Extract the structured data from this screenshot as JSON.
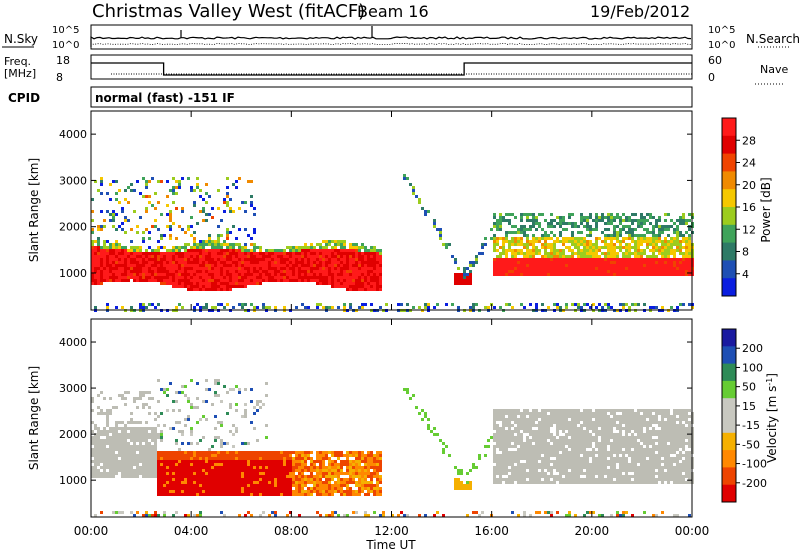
{
  "header": {
    "title": "Christmas Valley West (fitACF)",
    "beam": "Beam 16",
    "date": "19/Feb/2012"
  },
  "strip_labels": {
    "nsky": "N.Sky",
    "nsky_ticks": [
      "10^5",
      "10^0"
    ],
    "nsearch": "N.Search",
    "nsearch_ticks": [
      "10^5",
      "10^0"
    ],
    "freq": "Freq.",
    "freq_unit": "[MHz]",
    "freq_ticks": [
      "18",
      "8"
    ],
    "nave": "Nave",
    "nave_ticks": [
      "60",
      "0"
    ],
    "cpid": "CPID",
    "cpid_value": "normal (fast) -151 IF"
  },
  "colors": {
    "power_scale": [
      "#0a1ee0",
      "#1e4fb4",
      "#2e7a66",
      "#3fa35a",
      "#9ccc1e",
      "#f5c800",
      "#f08a00",
      "#f04400",
      "#e00000",
      "#ff1a1a"
    ],
    "velocity_scale": [
      "#e00000",
      "#ee4400",
      "#ff8800",
      "#f5b000",
      "#c8c8c0",
      "#c8c8c0",
      "#66cc33",
      "#2e8b57",
      "#1e4fb4",
      "#1a1aa0"
    ],
    "ground_scatter": "#bdbdb4"
  },
  "chart_data": [
    {
      "type": "heatmap",
      "name": "power",
      "ylabel": "Slant Range [km]",
      "yticks": [
        "1000",
        "2000",
        "3000",
        "4000"
      ],
      "ylim": [
        200,
        4500
      ],
      "xlim_hours": [
        0,
        24
      ],
      "colorbar_label": "Power [dB]",
      "colorbar_ticks": [
        "4",
        "8",
        "12",
        "16",
        "20",
        "24",
        "28"
      ],
      "features": [
        {
          "label": "main band",
          "hours": [
            0,
            11.5
          ],
          "range_km": [
            800,
            1700
          ],
          "level_db": 28
        },
        {
          "label": "afternoon band",
          "hours": [
            16,
            24
          ],
          "range_km": [
            1000,
            2300
          ],
          "level_db": 26
        },
        {
          "label": "near-range scatter",
          "hours": [
            0,
            24
          ],
          "range_km": [
            200,
            400
          ],
          "level_db": 10
        }
      ]
    },
    {
      "type": "heatmap",
      "name": "velocity",
      "ylabel": "Slant Range [km]",
      "yticks": [
        "1000",
        "2000",
        "3000",
        "4000"
      ],
      "ylim": [
        200,
        4500
      ],
      "xlim_hours": [
        0,
        24
      ],
      "xlabel": "Time UT",
      "xticks": [
        "00:00",
        "04:00",
        "08:00",
        "12:00",
        "16:00",
        "20:00",
        "00:00"
      ],
      "colorbar_label": "Velocity [m s^-1]",
      "colorbar_ticks": [
        "200",
        "100",
        "50",
        "15",
        "-15",
        "-50",
        "-100",
        "-200"
      ],
      "features": [
        {
          "label": "ground scatter",
          "hours": [
            0,
            2.5
          ],
          "range_km": [
            1000,
            2200
          ],
          "velocity": 0
        },
        {
          "label": "receding flow",
          "hours": [
            2.5,
            11.5
          ],
          "range_km": [
            700,
            1700
          ],
          "velocity": -200
        },
        {
          "label": "ground scatter",
          "hours": [
            16,
            24
          ],
          "range_km": [
            1000,
            2600
          ],
          "velocity": 0
        }
      ]
    }
  ]
}
